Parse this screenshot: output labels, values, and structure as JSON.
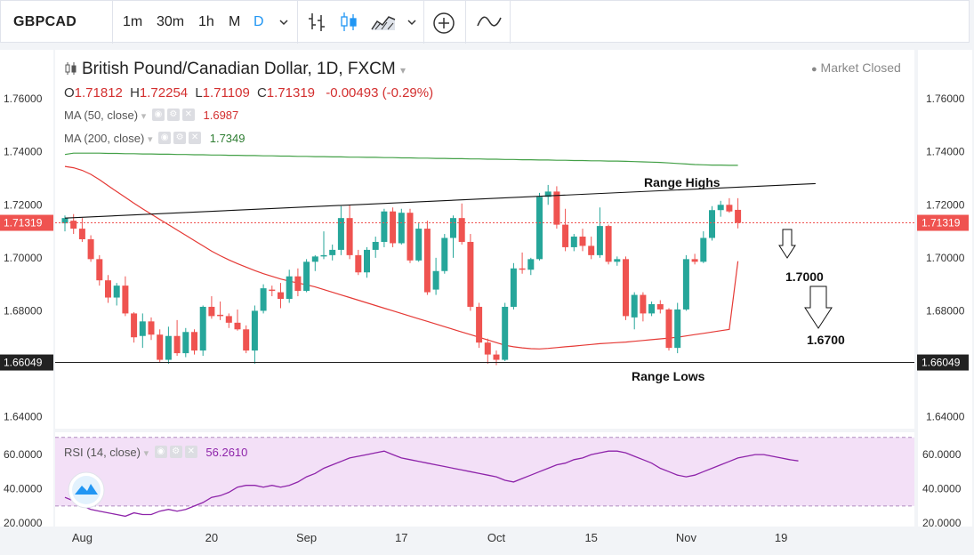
{
  "toolbar": {
    "symbol": "GBPCAD",
    "intervals": [
      "1m",
      "30m",
      "1h",
      "M",
      "D"
    ],
    "icons": [
      "chevron-down-icon",
      "bar-chart-icon",
      "candles-icon",
      "area-chart-icon",
      "add-icon",
      "indicators-icon"
    ]
  },
  "header": {
    "title": "British Pound/Canadian Dollar, 1D, FXCM",
    "market_status": "Market Closed",
    "ohlc": {
      "o_label": "O",
      "o": "1.71812",
      "h_label": "H",
      "h": "1.72254",
      "l_label": "L",
      "l": "1.71109",
      "c_label": "C",
      "c": "1.71319",
      "change": "-0.00493 (-0.29%)"
    },
    "ma50": {
      "label": "MA (50, close)",
      "value": "1.6987"
    },
    "ma200": {
      "label": "MA (200, close)",
      "value": "1.7349"
    },
    "rsi": {
      "label": "RSI (14, close)",
      "value": "56.2610"
    }
  },
  "colors": {
    "up": "#26a69a",
    "down": "#ef5350",
    "ma50": "#e53935",
    "ma200": "#43a047",
    "rsi": "#8e24aa",
    "rsi_band": "#f3e0f7",
    "text_red": "#d32f2f",
    "text_green": "#2e7d32"
  },
  "chart_data": [
    {
      "type": "candlestick",
      "title": "British Pound/Canadian Dollar, 1D, FXCM",
      "ylim": [
        1.6355,
        1.7785
      ],
      "y_ticks": [
        "1.76000",
        "1.74000",
        "1.72000",
        "1.70000",
        "1.68000",
        "1.66000",
        "1.64000"
      ],
      "x_ticks": [
        "Aug",
        "20",
        "Sep",
        "17",
        "Oct",
        "15",
        "Nov",
        "19"
      ],
      "x_tick_index": [
        2,
        17,
        28,
        39,
        50,
        61,
        72,
        83
      ],
      "last_price_label": "1.71319",
      "range_low_label": "1.66049",
      "range_low": 1.66049,
      "candles": [
        {
          "o": 1.713,
          "h": 1.716,
          "l": 1.71,
          "c": 1.715
        },
        {
          "o": 1.714,
          "h": 1.7165,
          "l": 1.709,
          "c": 1.711
        },
        {
          "o": 1.711,
          "h": 1.715,
          "l": 1.706,
          "c": 1.707
        },
        {
          "o": 1.707,
          "h": 1.7085,
          "l": 1.6985,
          "c": 1.6995
        },
        {
          "o": 1.6995,
          "h": 1.701,
          "l": 1.6895,
          "c": 1.6915
        },
        {
          "o": 1.6915,
          "h": 1.6935,
          "l": 1.683,
          "c": 1.685
        },
        {
          "o": 1.685,
          "h": 1.6905,
          "l": 1.682,
          "c": 1.6895
        },
        {
          "o": 1.6895,
          "h": 1.693,
          "l": 1.678,
          "c": 1.679
        },
        {
          "o": 1.679,
          "h": 1.6795,
          "l": 1.668,
          "c": 1.67
        },
        {
          "o": 1.6705,
          "h": 1.679,
          "l": 1.666,
          "c": 1.676
        },
        {
          "o": 1.676,
          "h": 1.6775,
          "l": 1.669,
          "c": 1.671
        },
        {
          "o": 1.671,
          "h": 1.673,
          "l": 1.6605,
          "c": 1.6615
        },
        {
          "o": 1.6615,
          "h": 1.674,
          "l": 1.66,
          "c": 1.6705
        },
        {
          "o": 1.6705,
          "h": 1.6765,
          "l": 1.663,
          "c": 1.664
        },
        {
          "o": 1.664,
          "h": 1.6735,
          "l": 1.6625,
          "c": 1.672
        },
        {
          "o": 1.672,
          "h": 1.673,
          "l": 1.6635,
          "c": 1.665
        },
        {
          "o": 1.665,
          "h": 1.682,
          "l": 1.663,
          "c": 1.6815
        },
        {
          "o": 1.6815,
          "h": 1.6855,
          "l": 1.677,
          "c": 1.678
        },
        {
          "o": 1.6785,
          "h": 1.6835,
          "l": 1.6765,
          "c": 1.678
        },
        {
          "o": 1.678,
          "h": 1.679,
          "l": 1.6735,
          "c": 1.6755
        },
        {
          "o": 1.6755,
          "h": 1.6805,
          "l": 1.6725,
          "c": 1.673
        },
        {
          "o": 1.673,
          "h": 1.6745,
          "l": 1.664,
          "c": 1.665
        },
        {
          "o": 1.665,
          "h": 1.682,
          "l": 1.66,
          "c": 1.68
        },
        {
          "o": 1.68,
          "h": 1.69,
          "l": 1.679,
          "c": 1.6885
        },
        {
          "o": 1.688,
          "h": 1.6895,
          "l": 1.6855,
          "c": 1.6875
        },
        {
          "o": 1.687,
          "h": 1.6905,
          "l": 1.681,
          "c": 1.6845
        },
        {
          "o": 1.6845,
          "h": 1.6955,
          "l": 1.683,
          "c": 1.693
        },
        {
          "o": 1.693,
          "h": 1.696,
          "l": 1.6855,
          "c": 1.6875
        },
        {
          "o": 1.6875,
          "h": 1.6995,
          "l": 1.687,
          "c": 1.6985
        },
        {
          "o": 1.6985,
          "h": 1.701,
          "l": 1.695,
          "c": 1.7005
        },
        {
          "o": 1.7005,
          "h": 1.71,
          "l": 1.6995,
          "c": 1.701
        },
        {
          "o": 1.701,
          "h": 1.705,
          "l": 1.699,
          "c": 1.703
        },
        {
          "o": 1.703,
          "h": 1.7195,
          "l": 1.701,
          "c": 1.715
        },
        {
          "o": 1.715,
          "h": 1.72,
          "l": 1.6995,
          "c": 1.701
        },
        {
          "o": 1.701,
          "h": 1.703,
          "l": 1.6935,
          "c": 1.6945
        },
        {
          "o": 1.6945,
          "h": 1.704,
          "l": 1.6925,
          "c": 1.703
        },
        {
          "o": 1.703,
          "h": 1.708,
          "l": 1.7,
          "c": 1.706
        },
        {
          "o": 1.706,
          "h": 1.7185,
          "l": 1.704,
          "c": 1.7175
        },
        {
          "o": 1.7175,
          "h": 1.719,
          "l": 1.704,
          "c": 1.7055
        },
        {
          "o": 1.7055,
          "h": 1.7185,
          "l": 1.705,
          "c": 1.717
        },
        {
          "o": 1.717,
          "h": 1.7185,
          "l": 1.698,
          "c": 1.699
        },
        {
          "o": 1.699,
          "h": 1.713,
          "l": 1.6985,
          "c": 1.711
        },
        {
          "o": 1.711,
          "h": 1.714,
          "l": 1.686,
          "c": 1.687
        },
        {
          "o": 1.688,
          "h": 1.7,
          "l": 1.686,
          "c": 1.695
        },
        {
          "o": 1.695,
          "h": 1.709,
          "l": 1.694,
          "c": 1.7075
        },
        {
          "o": 1.7075,
          "h": 1.716,
          "l": 1.7,
          "c": 1.715
        },
        {
          "o": 1.715,
          "h": 1.7205,
          "l": 1.705,
          "c": 1.706
        },
        {
          "o": 1.706,
          "h": 1.709,
          "l": 1.68,
          "c": 1.6815
        },
        {
          "o": 1.6815,
          "h": 1.683,
          "l": 1.666,
          "c": 1.668
        },
        {
          "o": 1.668,
          "h": 1.6695,
          "l": 1.66,
          "c": 1.6635
        },
        {
          "o": 1.6635,
          "h": 1.665,
          "l": 1.6595,
          "c": 1.6615
        },
        {
          "o": 1.6615,
          "h": 1.683,
          "l": 1.661,
          "c": 1.6815
        },
        {
          "o": 1.6815,
          "h": 1.698,
          "l": 1.6805,
          "c": 1.696
        },
        {
          "o": 1.696,
          "h": 1.702,
          "l": 1.694,
          "c": 1.6955
        },
        {
          "o": 1.6955,
          "h": 1.7,
          "l": 1.6935,
          "c": 1.6995
        },
        {
          "o": 1.6995,
          "h": 1.7245,
          "l": 1.699,
          "c": 1.723
        },
        {
          "o": 1.723,
          "h": 1.7275,
          "l": 1.72,
          "c": 1.725
        },
        {
          "o": 1.725,
          "h": 1.727,
          "l": 1.711,
          "c": 1.7125
        },
        {
          "o": 1.7125,
          "h": 1.7185,
          "l": 1.7025,
          "c": 1.704
        },
        {
          "o": 1.704,
          "h": 1.709,
          "l": 1.7025,
          "c": 1.708
        },
        {
          "o": 1.708,
          "h": 1.711,
          "l": 1.7025,
          "c": 1.7045
        },
        {
          "o": 1.7045,
          "h": 1.708,
          "l": 1.6995,
          "c": 1.701
        },
        {
          "o": 1.701,
          "h": 1.719,
          "l": 1.7,
          "c": 1.712
        },
        {
          "o": 1.712,
          "h": 1.7125,
          "l": 1.6975,
          "c": 1.6985
        },
        {
          "o": 1.6985,
          "h": 1.7005,
          "l": 1.697,
          "c": 1.6995
        },
        {
          "o": 1.6995,
          "h": 1.7005,
          "l": 1.6765,
          "c": 1.678
        },
        {
          "o": 1.6775,
          "h": 1.687,
          "l": 1.673,
          "c": 1.686
        },
        {
          "o": 1.686,
          "h": 1.687,
          "l": 1.676,
          "c": 1.679
        },
        {
          "o": 1.679,
          "h": 1.6835,
          "l": 1.678,
          "c": 1.6825
        },
        {
          "o": 1.6825,
          "h": 1.684,
          "l": 1.679,
          "c": 1.6805
        },
        {
          "o": 1.6805,
          "h": 1.681,
          "l": 1.665,
          "c": 1.666
        },
        {
          "o": 1.666,
          "h": 1.683,
          "l": 1.664,
          "c": 1.6805
        },
        {
          "o": 1.6805,
          "h": 1.701,
          "l": 1.68,
          "c": 1.6995
        },
        {
          "o": 1.6995,
          "h": 1.7015,
          "l": 1.6975,
          "c": 1.6985
        },
        {
          "o": 1.6985,
          "h": 1.71,
          "l": 1.698,
          "c": 1.7075
        },
        {
          "o": 1.7075,
          "h": 1.7195,
          "l": 1.7065,
          "c": 1.718
        },
        {
          "o": 1.718,
          "h": 1.7215,
          "l": 1.7155,
          "c": 1.72
        },
        {
          "o": 1.72,
          "h": 1.7225,
          "l": 1.717,
          "c": 1.7175
        },
        {
          "o": 1.7181,
          "h": 1.7225,
          "l": 1.7111,
          "c": 1.7132
        }
      ],
      "ma50": [
        1.7345,
        1.734,
        1.733,
        1.7315,
        1.7295,
        1.7272,
        1.725,
        1.7228,
        1.7206,
        1.7185,
        1.7165,
        1.7145,
        1.7125,
        1.7105,
        1.7085,
        1.7065,
        1.7045,
        1.7025,
        1.7008,
        1.6992,
        1.6978,
        1.6965,
        1.6952,
        1.694,
        1.693,
        1.692,
        1.6912,
        1.6905,
        1.6898,
        1.689,
        1.688,
        1.687,
        1.686,
        1.685,
        1.684,
        1.683,
        1.682,
        1.681,
        1.68,
        1.679,
        1.678,
        1.677,
        1.676,
        1.675,
        1.674,
        1.673,
        1.672,
        1.671,
        1.67,
        1.669,
        1.668,
        1.667,
        1.6664,
        1.666,
        1.6657,
        1.6656,
        1.6658,
        1.6661,
        1.6664,
        1.6667,
        1.667,
        1.6673,
        1.6676,
        1.6678,
        1.668,
        1.6682,
        1.6685,
        1.6688,
        1.6691,
        1.6694,
        1.6697,
        1.67,
        1.6705,
        1.671,
        1.6715,
        1.672,
        1.6725,
        1.673,
        1.6987
      ],
      "ma200": [
        1.739,
        1.7395,
        1.7395,
        1.7395,
        1.7395,
        1.7394,
        1.7394,
        1.7393,
        1.7393,
        1.7392,
        1.7392,
        1.7391,
        1.7391,
        1.739,
        1.739,
        1.7389,
        1.7389,
        1.7388,
        1.7388,
        1.7387,
        1.7387,
        1.7386,
        1.7386,
        1.7385,
        1.7385,
        1.7384,
        1.7384,
        1.7383,
        1.7383,
        1.7382,
        1.7382,
        1.7381,
        1.7381,
        1.738,
        1.738,
        1.7379,
        1.7379,
        1.7378,
        1.7378,
        1.7377,
        1.7377,
        1.7376,
        1.7376,
        1.7375,
        1.7375,
        1.7374,
        1.7374,
        1.7373,
        1.7373,
        1.7372,
        1.7372,
        1.7371,
        1.7371,
        1.737,
        1.737,
        1.7369,
        1.7369,
        1.7368,
        1.7368,
        1.7367,
        1.7367,
        1.7366,
        1.7366,
        1.7365,
        1.7365,
        1.7364,
        1.7363,
        1.7362,
        1.7361,
        1.736,
        1.7358,
        1.7356,
        1.7354,
        1.7352,
        1.7351,
        1.735,
        1.735,
        1.7349,
        1.7349
      ],
      "trendline": [
        [
          1.715,
          0
        ],
        [
          1.728,
          87
        ]
      ],
      "annotations": [
        {
          "text": "Range Highs"
        },
        {
          "text": "Range Lows"
        },
        {
          "text": "1.7000"
        },
        {
          "text": "1.6700"
        }
      ]
    },
    {
      "type": "line",
      "title": "RSI (14, close)",
      "ylim": [
        18,
        73
      ],
      "band": [
        30,
        70
      ],
      "y_ticks": [
        "60.0000",
        "40.0000",
        "20.0000"
      ],
      "values": [
        35,
        33,
        30,
        28,
        27,
        26,
        25,
        24,
        26,
        25,
        25,
        27,
        28,
        27,
        28,
        30,
        32,
        35,
        36,
        38,
        41,
        42,
        42,
        41,
        42,
        41,
        42,
        44,
        47,
        49,
        52,
        54,
        56,
        58,
        59,
        60,
        61,
        62,
        60,
        58,
        57,
        56,
        55,
        54,
        53,
        52,
        51,
        50,
        49,
        48,
        47,
        45,
        44,
        46,
        48,
        50,
        52,
        54,
        55,
        57,
        58,
        60,
        61,
        62,
        62,
        61,
        59,
        57,
        55,
        52,
        50,
        48,
        47,
        48,
        50,
        52,
        54,
        56,
        58,
        59,
        60,
        60,
        59,
        58,
        57,
        56.3
      ]
    }
  ]
}
